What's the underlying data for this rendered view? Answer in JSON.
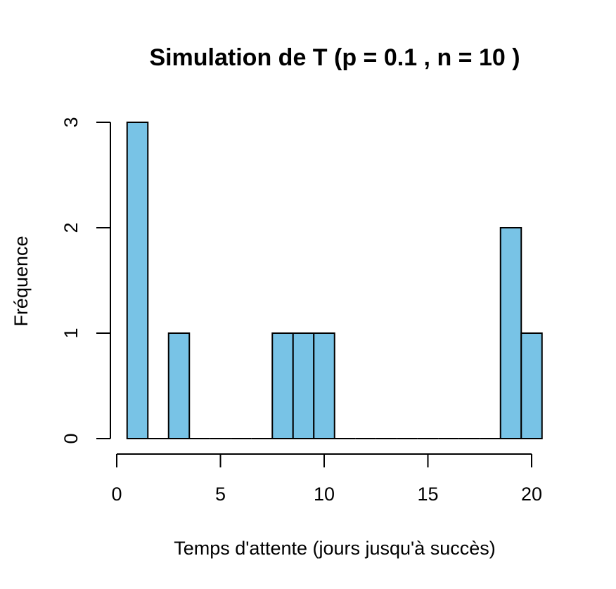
{
  "chart_data": {
    "type": "bar",
    "title": "Simulation de T (p = 0.1 , n = 10 )",
    "xlabel": "Temps d'attente (jours jusqu'à succès)",
    "ylabel": "Fréquence",
    "x": [
      1,
      2,
      3,
      4,
      5,
      6,
      7,
      8,
      9,
      10,
      11,
      12,
      13,
      14,
      15,
      16,
      17,
      18,
      19,
      20
    ],
    "values": [
      3,
      0,
      1,
      0,
      0,
      0,
      0,
      1,
      1,
      1,
      0,
      0,
      0,
      0,
      0,
      0,
      0,
      0,
      2,
      1
    ],
    "bin_width": 1,
    "xlim": [
      0.5,
      20.5
    ],
    "ylim": [
      0,
      3
    ],
    "x_ticks": [
      0,
      5,
      10,
      15,
      20
    ],
    "y_ticks": [
      0,
      1,
      2,
      3
    ],
    "bar_color": "#78C3E6",
    "grid": false
  }
}
